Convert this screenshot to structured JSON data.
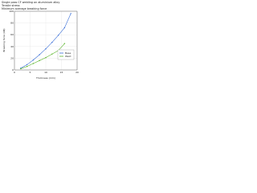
{
  "chart_data": {
    "type": "line",
    "title": "Single pass CF welding on aluminium alloy",
    "subtitle": "Tensile stress",
    "annotation": "Minimum average breaking force",
    "xlabel": "Thickness (mm)",
    "ylabel": "Breaking force (kN)",
    "x": [
      2,
      4,
      6,
      8,
      10,
      12,
      14,
      16,
      18
    ],
    "series": [
      {
        "name": "Base",
        "color": "#3a6fd8",
        "values": [
          3,
          9,
          17,
          26,
          36,
          47,
          59,
          72,
          96
        ]
      },
      {
        "name": "Weld",
        "color": "#5ab52a",
        "values": [
          2,
          6,
          11,
          16,
          21,
          27,
          33,
          45,
          null
        ]
      }
    ],
    "xlim": [
      0,
      20
    ],
    "xticks": [
      0,
      5,
      10,
      15,
      20
    ],
    "ylim": [
      0,
      100
    ],
    "yticks": [
      0,
      20,
      40,
      60,
      80,
      100
    ],
    "grid": true,
    "legend": "right"
  }
}
